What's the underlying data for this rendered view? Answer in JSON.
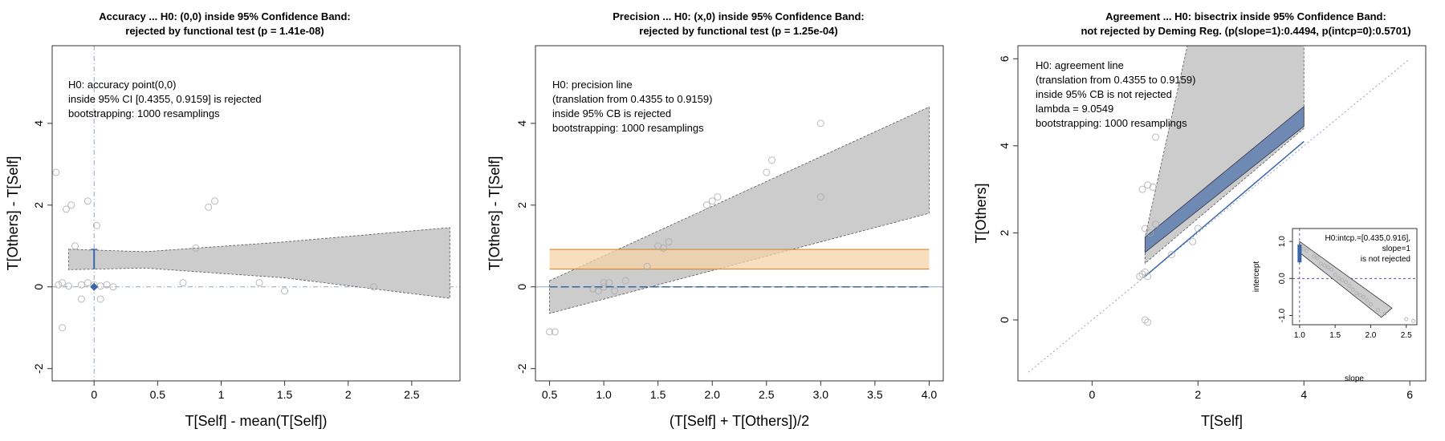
{
  "colors": {
    "band": "#cccccc",
    "band_stroke": "#555555",
    "accent_blue": "#3a66a8",
    "steel_blue": "#6d89b4",
    "orange": "#f5d2a8",
    "orange_stroke": "#d08a30",
    "points": "#aaaaaa",
    "ref_line": "#8fa3c8",
    "ellipse_fill": "#cccccc"
  },
  "chart_data": [
    {
      "type": "scatter",
      "title_line1": "Accuracy ... H0: (0,0) inside 95% Confidence Band:",
      "title_line2": "rejected by functional test (p = 1.41e-08)",
      "xlabel": "T[Self] - mean(T[Self])",
      "ylabel": "T[Others] - T[Self]",
      "xlim": [
        -0.33,
        2.88
      ],
      "ylim": [
        -2.3,
        5.9
      ],
      "xticks": [
        0.0,
        0.5,
        1.0,
        1.5,
        2.0,
        2.5
      ],
      "yticks": [
        -2,
        0,
        2,
        4
      ],
      "annotation": [
        "H0: accuracy point(0,0)",
        "inside 95% CI [0.4355, 0.9159] is rejected",
        "bootstrapping: 1000 resamplings"
      ],
      "band_upper": [
        [
          -0.2,
          0.92
        ],
        [
          0.4,
          0.86
        ],
        [
          1.5,
          1.1
        ],
        [
          2.8,
          1.45
        ]
      ],
      "band_lower": [
        [
          -0.2,
          0.42
        ],
        [
          0.4,
          0.46
        ],
        [
          1.5,
          0.22
        ],
        [
          2.8,
          -0.28
        ]
      ],
      "ci": [
        0.4355,
        0.9159
      ],
      "accuracy_point": [
        0,
        0
      ],
      "points": [
        [
          -0.28,
          0.05
        ],
        [
          -0.25,
          0.1
        ],
        [
          -0.2,
          0.02
        ],
        [
          -0.18,
          2.0
        ],
        [
          -0.22,
          1.9
        ],
        [
          -0.15,
          1.0
        ],
        [
          -0.1,
          0.05
        ],
        [
          -0.05,
          0.1
        ],
        [
          0.0,
          0.05
        ],
        [
          0.05,
          0.02
        ],
        [
          0.02,
          1.5
        ],
        [
          -0.05,
          2.1
        ],
        [
          0.1,
          0.05
        ],
        [
          0.15,
          0.0
        ],
        [
          -0.3,
          2.8
        ],
        [
          -0.25,
          -1.0
        ],
        [
          0.7,
          0.1
        ],
        [
          0.8,
          0.95
        ],
        [
          0.9,
          1.95
        ],
        [
          0.95,
          2.1
        ],
        [
          1.3,
          0.1
        ],
        [
          1.5,
          -0.1
        ],
        [
          2.2,
          0.0
        ],
        [
          -0.1,
          -0.3
        ],
        [
          0.05,
          -0.3
        ]
      ]
    },
    {
      "type": "scatter",
      "title_line1": "Precision ... H0: (x,0) inside 95% Confidence Band:",
      "title_line2": "rejected by functional test (p = 1.25e-04)",
      "xlabel": "(T[Self] + T[Others])/2",
      "ylabel": "T[Others] - T[Self]",
      "xlim": [
        0.37,
        4.13
      ],
      "ylim": [
        -2.3,
        5.9
      ],
      "xticks": [
        0.5,
        1.0,
        1.5,
        2.0,
        2.5,
        3.0,
        3.5,
        4.0
      ],
      "xtick_labels": [
        "0.5",
        "1.0",
        "1.5",
        "2.0",
        "2.5",
        "3.0",
        "3.5",
        "4.0"
      ],
      "yticks": [
        -2,
        0,
        2,
        4
      ],
      "annotation": [
        "H0: precision line",
        "(translation from 0.4355 to 0.9159)",
        "inside 95% CB is rejected",
        "bootstrapping: 1000 resamplings"
      ],
      "band_upper": [
        [
          0.5,
          0.15
        ],
        [
          4.0,
          4.4
        ]
      ],
      "band_lower": [
        [
          0.5,
          -0.65
        ],
        [
          4.0,
          1.8
        ]
      ],
      "translation": [
        0.4355,
        0.9159
      ],
      "points": [
        [
          0.5,
          -1.1
        ],
        [
          0.55,
          -1.1
        ],
        [
          0.9,
          -0.05
        ],
        [
          0.95,
          -0.1
        ],
        [
          1.0,
          0.0
        ],
        [
          1.05,
          0.1
        ],
        [
          1.1,
          -0.1
        ],
        [
          1.5,
          1.0
        ],
        [
          1.6,
          1.1
        ],
        [
          1.55,
          0.95
        ],
        [
          2.0,
          2.1
        ],
        [
          2.05,
          2.2
        ],
        [
          1.95,
          2.0
        ],
        [
          2.5,
          2.8
        ],
        [
          2.55,
          3.1
        ],
        [
          3.0,
          2.2
        ],
        [
          3.0,
          4.0
        ],
        [
          1.0,
          0.1
        ],
        [
          1.2,
          0.15
        ],
        [
          1.4,
          0.5
        ]
      ]
    },
    {
      "type": "scatter",
      "title_line1": "Agreement ... H0: bisectrix inside 95% Confidence Band:",
      "title_line2": "not rejected by Deming Reg. (p(slope=1):0.4494, p(intcp=0):0.5701)",
      "xlabel": "T[Self]",
      "ylabel": "T[Others]",
      "xlim": [
        -1.4,
        6.3
      ],
      "ylim": [
        -1.4,
        6.3
      ],
      "xticks": [
        0,
        2,
        4,
        6
      ],
      "yticks": [
        0,
        2,
        4,
        6
      ],
      "annotation": [
        "H0: agreement line",
        "(translation from 0.4355 to 0.9159)",
        "inside 95% CB is not rejected",
        "lambda = 9.0549",
        "bootstrapping: 1000 resamplings"
      ],
      "grey_band": [
        [
          1.0,
          1.3
        ],
        [
          1.0,
          1.9
        ],
        [
          1.8,
          6.3
        ],
        [
          4.0,
          6.3
        ],
        [
          4.0,
          4.4
        ]
      ],
      "steel_band": [
        [
          1.0,
          1.55
        ],
        [
          1.0,
          1.9
        ],
        [
          4.0,
          4.9
        ],
        [
          4.0,
          4.45
        ]
      ],
      "blue_line": [
        [
          1.0,
          1.0
        ],
        [
          4.0,
          4.1
        ]
      ],
      "bisectrix": [
        [
          -1.2,
          -1.2
        ],
        [
          6.0,
          6.0
        ]
      ],
      "points": [
        [
          0.9,
          1.0
        ],
        [
          0.95,
          1.05
        ],
        [
          1.0,
          1.1
        ],
        [
          1.05,
          1.0
        ],
        [
          1.0,
          2.1
        ],
        [
          1.1,
          2.0
        ],
        [
          0.95,
          3.0
        ],
        [
          1.05,
          3.1
        ],
        [
          1.2,
          4.2
        ],
        [
          1.0,
          0.0
        ],
        [
          1.05,
          -0.05
        ],
        [
          1.5,
          1.5
        ],
        [
          1.9,
          1.8
        ],
        [
          2.0,
          2.1
        ],
        [
          1.2,
          2.2
        ],
        [
          1.15,
          3.05
        ]
      ],
      "inset": {
        "xlabel": "slope",
        "ylabel": "intercept",
        "xlim": [
          0.9,
          2.65
        ],
        "ylim": [
          -1.25,
          1.35
        ],
        "xticks": [
          1.0,
          1.5,
          2.0,
          2.5
        ],
        "xtick_labels": [
          "1.0",
          "1.5",
          "2.0",
          "2.5"
        ],
        "yticks": [
          -1.0,
          0.0,
          1.0
        ],
        "ytick_labels": [
          "-1.0",
          "0.0",
          "1.0"
        ],
        "annotation": [
          "H0:intcp.=[0.435,0.916],",
          "slope=1",
          "is not rejected"
        ],
        "h0_segment": [
          [
            1.0,
            0.435
          ],
          [
            1.0,
            0.916
          ]
        ],
        "ellipse_polygon": [
          [
            1.0,
            1.0
          ],
          [
            1.0,
            0.7
          ],
          [
            2.15,
            -1.05
          ],
          [
            2.3,
            -0.8
          ]
        ],
        "points": [
          [
            1.05,
            0.8
          ],
          [
            1.1,
            0.75
          ],
          [
            1.2,
            0.6
          ],
          [
            1.3,
            0.4
          ],
          [
            1.4,
            0.3
          ],
          [
            1.5,
            0.1
          ],
          [
            1.6,
            -0.05
          ],
          [
            1.7,
            -0.2
          ],
          [
            1.8,
            -0.4
          ],
          [
            1.9,
            -0.5
          ],
          [
            2.0,
            -0.7
          ],
          [
            2.1,
            -0.85
          ],
          [
            1.45,
            0.25
          ],
          [
            1.55,
            0.0
          ],
          [
            1.65,
            -0.1
          ],
          [
            1.75,
            -0.3
          ],
          [
            1.85,
            -0.45
          ],
          [
            1.95,
            -0.6
          ],
          [
            1.25,
            0.55
          ],
          [
            1.35,
            0.35
          ],
          [
            2.2,
            -0.95
          ],
          [
            2.5,
            -1.1
          ],
          [
            2.6,
            -1.15
          ]
        ]
      }
    }
  ]
}
